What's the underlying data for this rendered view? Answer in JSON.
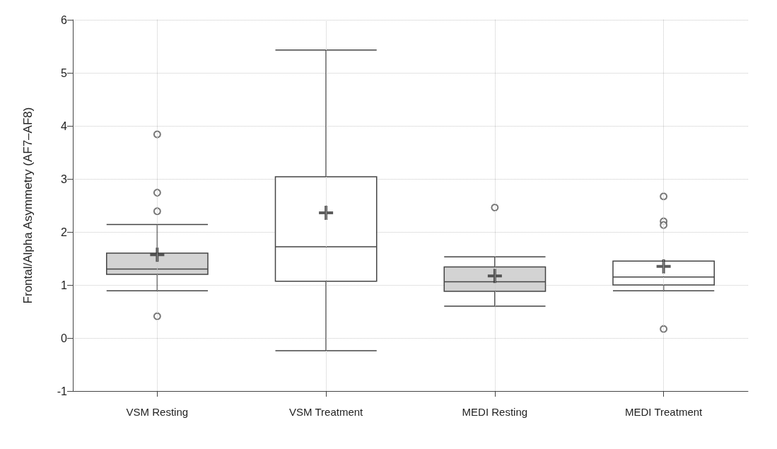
{
  "chart_data": {
    "type": "box",
    "ylabel": "Frontal/Alpha Asymmetry (AF7–AF8)",
    "categories": [
      "VSM Resting",
      "VSM Treatment",
      "MEDI Resting",
      "MEDI Treatment"
    ],
    "colors": [
      "#d3d3d3",
      "#ffffff",
      "#d3d3d3",
      "#ffffff"
    ],
    "boxes": [
      {
        "low": 0.89,
        "q1": 1.2,
        "median": 1.3,
        "q3": 1.6,
        "high": 2.14,
        "mean": 1.57,
        "outliers": [
          3.84,
          2.74,
          2.39,
          0.41
        ]
      },
      {
        "low": -0.24,
        "q1": 1.07,
        "median": 1.72,
        "q3": 3.04,
        "high": 5.43,
        "mean": 2.36
      },
      {
        "low": 0.6,
        "q1": 0.88,
        "median": 1.06,
        "q3": 1.34,
        "high": 1.53,
        "mean": 1.17,
        "outliers": [
          2.46
        ]
      },
      {
        "low": 0.89,
        "q1": 1.0,
        "median": 1.15,
        "q3": 1.45,
        "high": 1.45,
        "mean": 1.35,
        "outliers": [
          2.67,
          2.2,
          2.13,
          0.17
        ]
      }
    ],
    "ylim": [
      -1,
      6
    ],
    "yticks": [
      -1,
      0,
      1,
      2,
      3,
      4,
      5,
      6
    ],
    "grid": true
  }
}
